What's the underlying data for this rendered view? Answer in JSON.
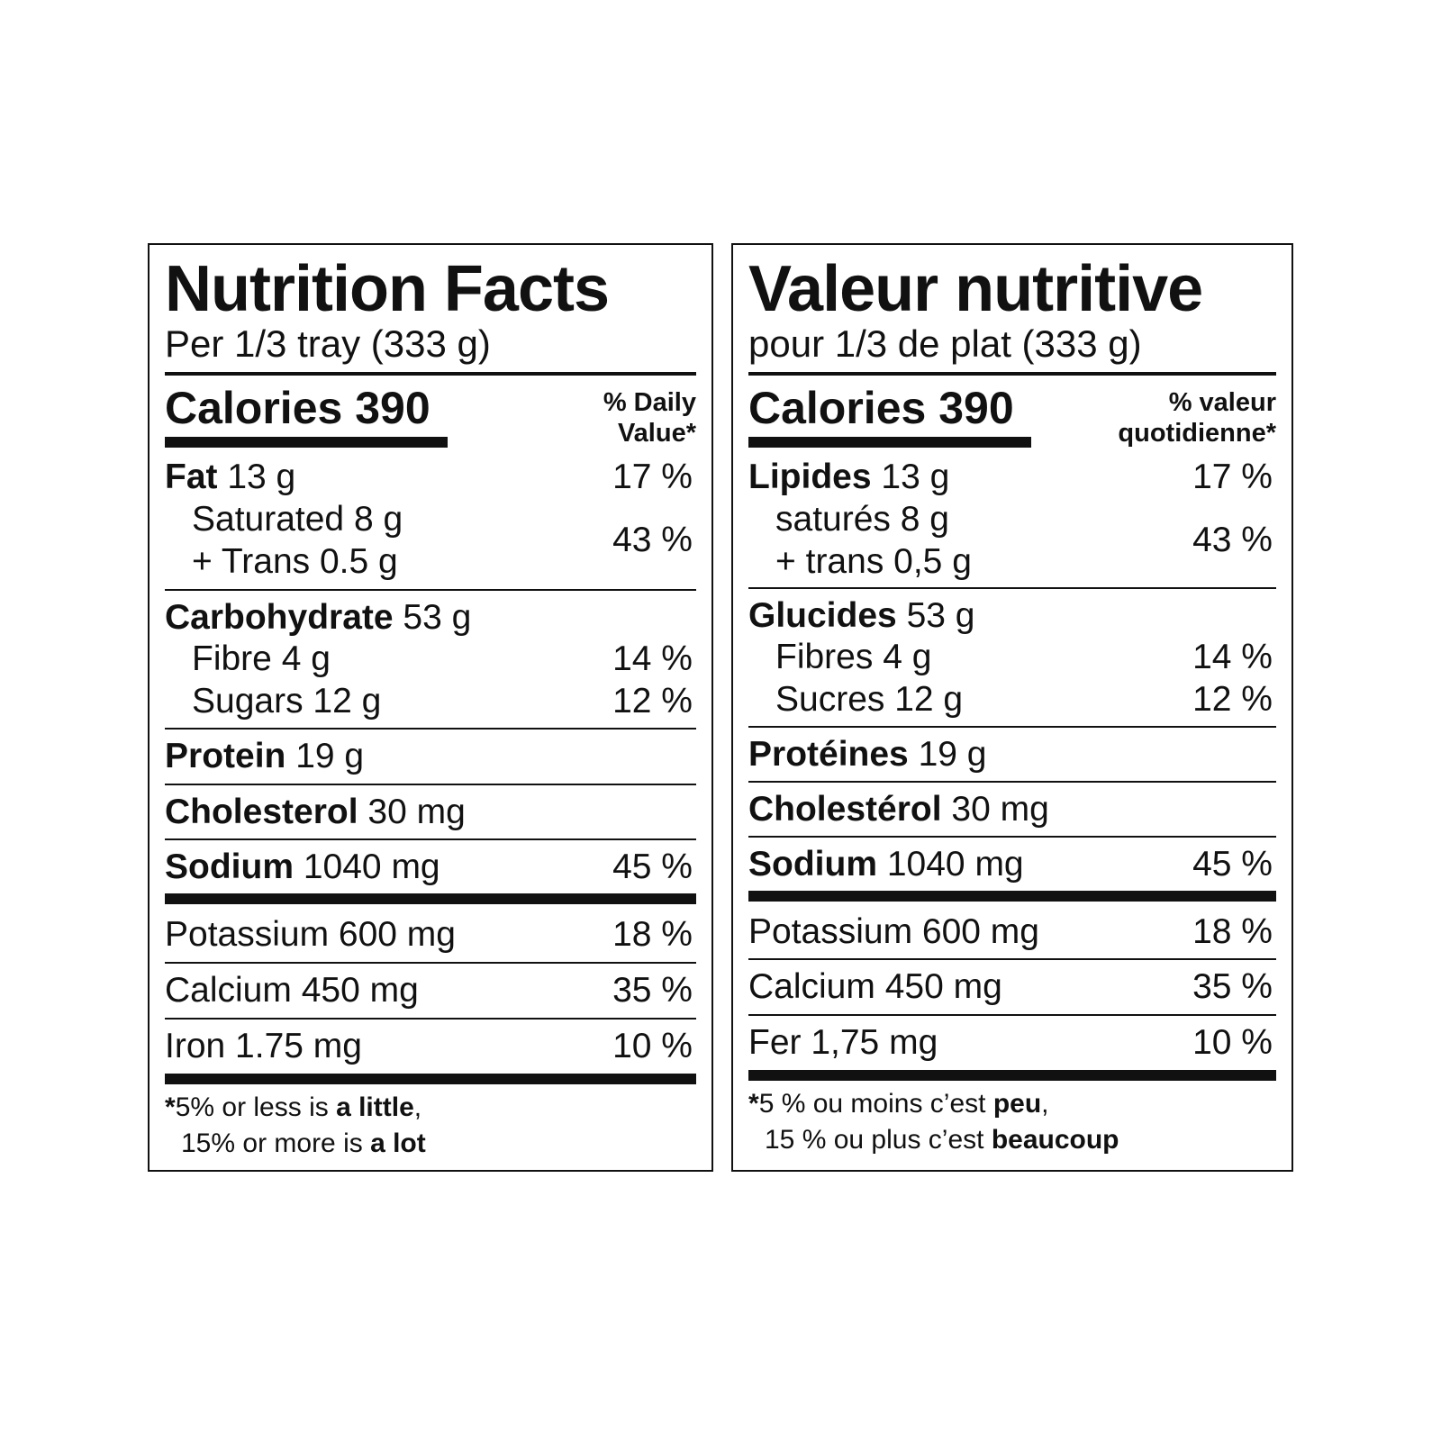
{
  "english": {
    "title": "Nutrition Facts",
    "serving": "Per 1/3 tray (333 g)",
    "calories": "Calories 390",
    "dv_line1": "% Daily",
    "dv_line2": "Value*",
    "fat": {
      "label": "Fat",
      "amount": "13 g",
      "pct": "17 %"
    },
    "saturated": "Saturated 8 g",
    "trans": "+ Trans 0.5 g",
    "sat_trans_pct": "43 %",
    "carbohydrate": {
      "label": "Carbohydrate",
      "amount": "53 g"
    },
    "fibre": {
      "text": "Fibre 4 g",
      "pct": "14 %"
    },
    "sugars": {
      "text": "Sugars 12 g",
      "pct": "12 %"
    },
    "protein": {
      "label": "Protein",
      "amount": "19 g"
    },
    "cholesterol": {
      "label": "Cholesterol",
      "amount": "30 mg"
    },
    "sodium": {
      "label": "Sodium",
      "amount": "1040 mg",
      "pct": "45 %"
    },
    "potassium": {
      "text": "Potassium 600 mg",
      "pct": "18 %"
    },
    "calcium": {
      "text": "Calcium 450 mg",
      "pct": "35 %"
    },
    "iron": {
      "text": "Iron 1.75 mg",
      "pct": "10 %"
    },
    "footnote": {
      "star": "*",
      "l1_pre": "5% or less is ",
      "l1_bold": "a little",
      "l1_post": ",",
      "l2_pre": "15% or more is ",
      "l2_bold": "a lot"
    }
  },
  "french": {
    "title": "Valeur nutritive",
    "serving": "pour 1/3 de plat (333 g)",
    "calories": "Calories 390",
    "dv_line1": "% valeur",
    "dv_line2": "quotidienne*",
    "fat": {
      "label": "Lipides",
      "amount": "13 g",
      "pct": "17 %"
    },
    "saturated": "saturés 8 g",
    "trans": "+ trans 0,5 g",
    "sat_trans_pct": "43 %",
    "carbohydrate": {
      "label": "Glucides",
      "amount": "53 g"
    },
    "fibre": {
      "text": "Fibres 4 g",
      "pct": "14 %"
    },
    "sugars": {
      "text": "Sucres 12 g",
      "pct": "12 %"
    },
    "protein": {
      "label": "Protéines",
      "amount": "19 g"
    },
    "cholesterol": {
      "label": "Cholestérol",
      "amount": "30 mg"
    },
    "sodium": {
      "label": "Sodium",
      "amount": "1040 mg",
      "pct": "45 %"
    },
    "potassium": {
      "text": "Potassium 600 mg",
      "pct": "18 %"
    },
    "calcium": {
      "text": "Calcium 450 mg",
      "pct": "35 %"
    },
    "iron": {
      "text": "Fer 1,75 mg",
      "pct": "10 %"
    },
    "footnote": {
      "star": "*",
      "l1_pre": "5 % ou moins c’est ",
      "l1_bold": "peu",
      "l1_post": ",",
      "l2_pre": "15 % ou plus c’est ",
      "l2_bold": "beaucoup"
    }
  }
}
